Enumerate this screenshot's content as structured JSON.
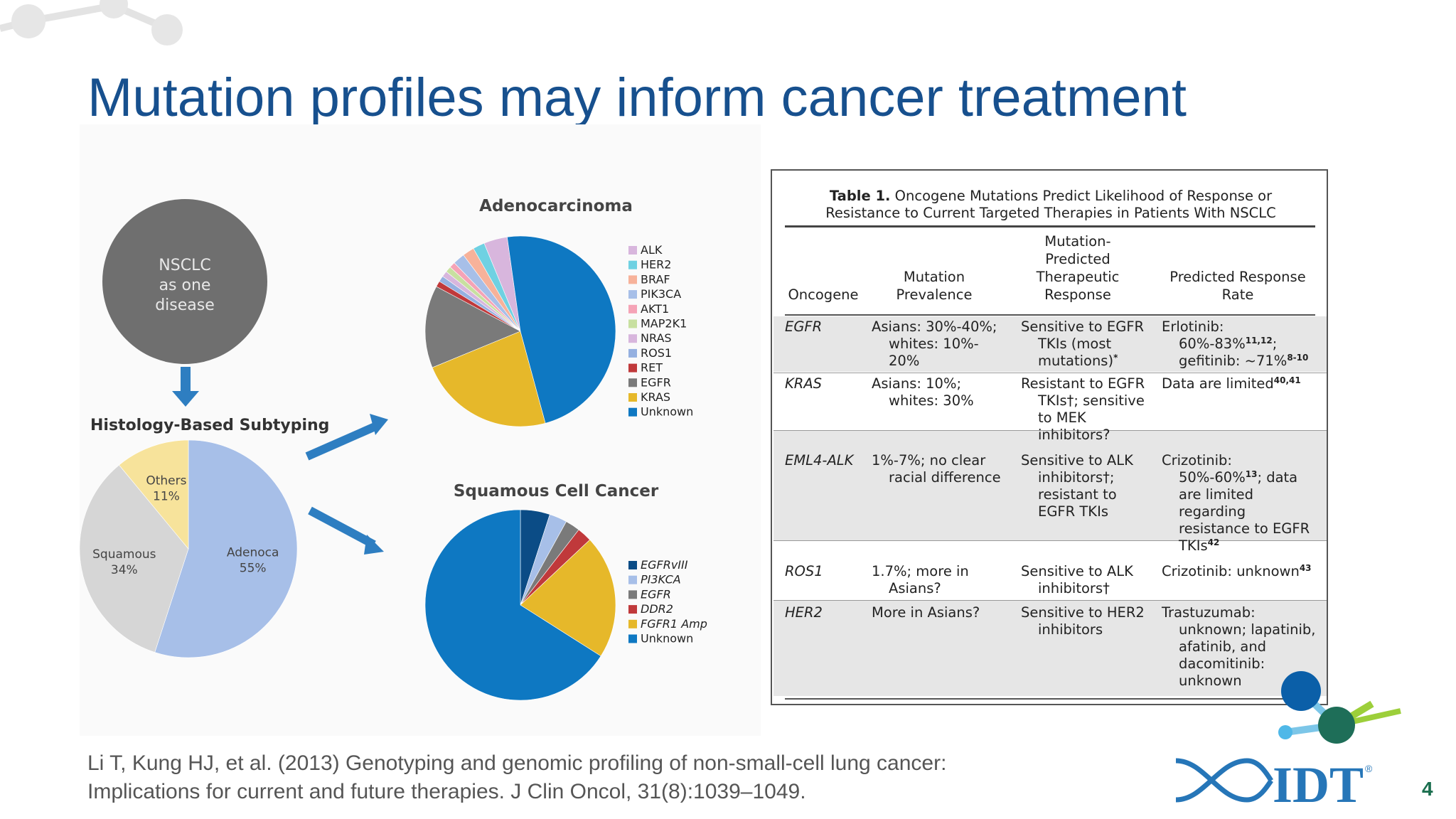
{
  "slide": {
    "title": "Mutation profiles may inform cancer treatment",
    "citation_line1": "Li T, Kung HJ, et al. (2013) Genotyping and genomic profiling of non-small-cell lung cancer:",
    "citation_line2": "Implications for current and future therapies. J Clin Oncol, 31(8):1039–1049.",
    "page_number": "4",
    "logo_text": "IDT",
    "logo_mark": "®"
  },
  "colors": {
    "title": "#17508e",
    "accent_blue": "#2e7ec1",
    "accent_green": "#1b6f4f"
  },
  "flow": {
    "nsclc_line1": "NSCLC",
    "nsclc_line2": "as one",
    "nsclc_line3": "disease",
    "histology_label": "Histology-Based Subtyping"
  },
  "chart_data": [
    {
      "type": "pie",
      "title": "",
      "slices": [
        {
          "label": "Adenoca",
          "value": 55,
          "pct_label": "55%",
          "color": "#a7bfe8"
        },
        {
          "label": "Squamous",
          "value": 34,
          "pct_label": "34%",
          "color": "#d6d6d6"
        },
        {
          "label": "Others",
          "value": 11,
          "pct_label": "11%",
          "color": "#f7e39b"
        }
      ]
    },
    {
      "type": "pie",
      "title": "Adenocarcinoma",
      "slices": [
        {
          "label": "ALK",
          "value": 4,
          "color": "#d8b6dd"
        },
        {
          "label": "HER2",
          "value": 2,
          "color": "#6fd1e2"
        },
        {
          "label": "BRAF",
          "value": 2,
          "color": "#f7b29a"
        },
        {
          "label": "PIK3CA",
          "value": 2,
          "color": "#a7bfe8"
        },
        {
          "label": "AKT1",
          "value": 1,
          "color": "#f5a3b6"
        },
        {
          "label": "MAP2K1",
          "value": 1,
          "color": "#c8e0a0"
        },
        {
          "label": "NRAS",
          "value": 1,
          "color": "#d8b6dd"
        },
        {
          "label": "ROS1",
          "value": 1,
          "color": "#95b0e0"
        },
        {
          "label": "RET",
          "value": 1,
          "color": "#c0393b"
        },
        {
          "label": "EGFR",
          "value": 14,
          "color": "#7a7a7a"
        },
        {
          "label": "KRAS",
          "value": 23,
          "color": "#e6b82a"
        },
        {
          "label": "Unknown",
          "value": 48,
          "color": "#0e78c2"
        }
      ]
    },
    {
      "type": "pie",
      "title": "Squamous Cell Cancer",
      "slices": [
        {
          "label": "EGFRvIII",
          "value": 5,
          "color": "#0b4c86"
        },
        {
          "label": "PI3KCA",
          "value": 3,
          "color": "#a7bfe8"
        },
        {
          "label": "EGFR",
          "value": 2.5,
          "color": "#7a7a7a"
        },
        {
          "label": "DDR2",
          "value": 2.5,
          "color": "#c0393b"
        },
        {
          "label": "FGFR1 Amp",
          "value": 21,
          "color": "#e6b82a"
        },
        {
          "label": "Unknown",
          "value": 66,
          "color": "#0e78c2"
        }
      ]
    }
  ],
  "table": {
    "caption_bold": "Table 1.",
    "caption_line1": "Oncogene Mutations Predict Likelihood of Response or",
    "caption_line2": "Resistance to Current Targeted Therapies in Patients With NSCLC",
    "headers": {
      "oncogene": "Oncogene",
      "prevalence_1": "Mutation",
      "prevalence_2": "Prevalence",
      "response_1": "Mutation-",
      "response_2": "Predicted",
      "response_3": "Therapeutic",
      "response_4": "Response",
      "rate_1": "Predicted Response",
      "rate_2": "Rate"
    },
    "rows": [
      {
        "oncogene": "EGFR",
        "prevalence": [
          "Asians: 30%-40%;",
          "whites: 10%-",
          "20%"
        ],
        "response": [
          "Sensitive to EGFR",
          "TKIs (most",
          "mutations)"
        ],
        "response_sup": "*",
        "rate": [
          "Erlotinib:",
          "60%-83%",
          "gefitinib: ~71%"
        ],
        "rate_sup": [
          "11,12",
          "8-10"
        ]
      },
      {
        "oncogene": "KRAS",
        "prevalence": [
          "Asians: 10%;",
          "whites: 30%"
        ],
        "response": [
          "Resistant to EGFR",
          "TKIs†; sensitive",
          "to MEK",
          "inhibitors?"
        ],
        "rate": [
          "Data are limited"
        ],
        "rate_sup": [
          "40,41"
        ]
      },
      {
        "oncogene": "EML4-ALK",
        "prevalence": [
          "1%-7%; no clear",
          "racial difference"
        ],
        "response": [
          "Sensitive to ALK",
          "inhibitors†;",
          "resistant to",
          "EGFR TKIs"
        ],
        "rate": [
          "Crizotinib:",
          "50%-60%",
          "; data",
          "are limited",
          "regarding",
          "resistance to EGFR",
          "TKIs"
        ],
        "rate_sup": [
          "13",
          "42"
        ]
      },
      {
        "oncogene": "ROS1",
        "prevalence": [
          "1.7%; more in",
          "Asians?"
        ],
        "response": [
          "Sensitive to ALK",
          "inhibitors†"
        ],
        "rate": [
          "Crizotinib: unknown"
        ],
        "rate_sup": [
          "43"
        ]
      },
      {
        "oncogene": "HER2",
        "prevalence": [
          "More in Asians?"
        ],
        "response": [
          "Sensitive to HER2",
          "inhibitors"
        ],
        "rate": [
          "Trastuzumab:",
          "unknown; lapatinib,",
          "afatinib, and",
          "dacomitinib:",
          "unknown"
        ]
      }
    ]
  }
}
